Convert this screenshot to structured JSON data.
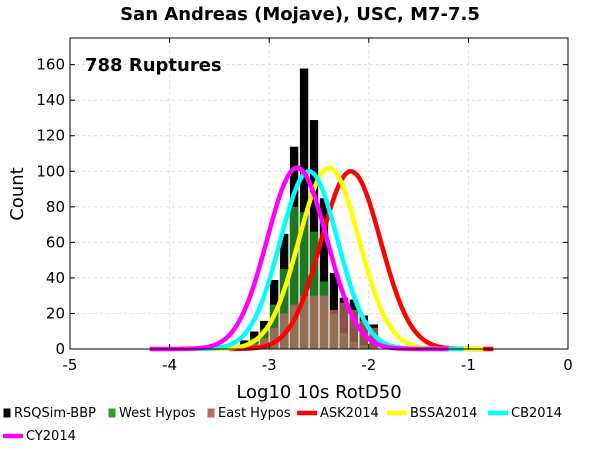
{
  "chart_data": {
    "type": "bar",
    "title": "San Andreas (Mojave), USC, M7-7.5",
    "annotation": "788 Ruptures",
    "xlabel": "Log10 10s RotD50",
    "ylabel": "Count",
    "xlim": [
      -5,
      0
    ],
    "ylim": [
      0,
      175
    ],
    "xticks": [
      -5,
      -4,
      -3,
      -2,
      -1,
      0
    ],
    "yticks": [
      0,
      20,
      40,
      60,
      80,
      100,
      120,
      140,
      160
    ],
    "grid": true,
    "bin_width": 0.1,
    "bins_left": [
      -3.3,
      -3.2,
      -3.1,
      -3.0,
      -2.9,
      -2.8,
      -2.7,
      -2.6,
      -2.5,
      -2.4,
      -2.3,
      -2.2,
      -2.1,
      -2.0
    ],
    "series": [
      {
        "name": "RSQSim-BBP",
        "color": "#000000",
        "values": [
          5,
          10,
          16,
          39,
          65,
          114,
          158,
          129,
          85,
          43,
          29,
          28,
          19,
          14
        ]
      },
      {
        "name": "West Hypos",
        "color": "#2e9e2e",
        "values": [
          2,
          6,
          11,
          25,
          45,
          80,
          77,
          66,
          38,
          20,
          9,
          4,
          2,
          1
        ]
      },
      {
        "name": "East Hypos",
        "color": "#b86e65",
        "values": [
          1,
          3,
          6,
          12,
          20,
          25,
          30,
          30,
          30,
          22,
          26,
          22,
          16,
          12
        ]
      }
    ],
    "curves": [
      {
        "name": "ASK2014",
        "color": "#ff0000",
        "mean": -2.18,
        "sigma": 0.3,
        "peak": 100,
        "range": [
          -3.4,
          -0.75
        ]
      },
      {
        "name": "BSSA2014",
        "color": "#ffff00",
        "mean": -2.4,
        "sigma": 0.3,
        "peak": 102,
        "range": [
          -3.6,
          -0.85
        ]
      },
      {
        "name": "CB2014",
        "color": "#00ffff",
        "mean": -2.6,
        "sigma": 0.29,
        "peak": 100,
        "range": [
          -3.9,
          -1.05
        ]
      },
      {
        "name": "CY2014",
        "color": "#ff00ff",
        "mean": -2.72,
        "sigma": 0.3,
        "peak": 102,
        "range": [
          -4.2,
          -1.2
        ]
      }
    ]
  }
}
